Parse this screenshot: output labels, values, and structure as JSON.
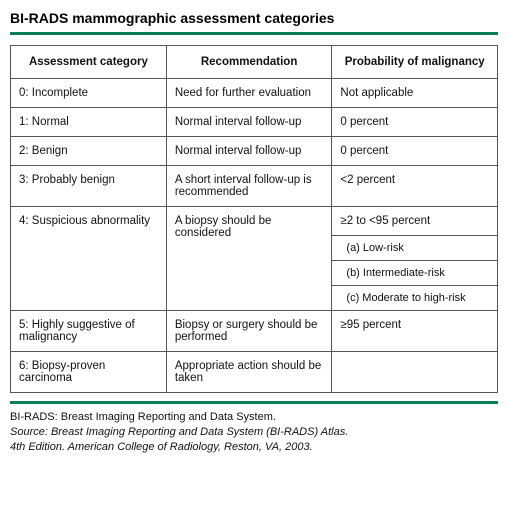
{
  "title": "BI-RADS mammographic assessment categories",
  "accent_color": "#0b7d5c",
  "border_color": "#555555",
  "columns": [
    "Assessment category",
    "Recommendation",
    "Probability of malignancy"
  ],
  "rows": [
    {
      "category": "0: Incomplete",
      "recommendation": "Need for further evaluation",
      "probability": "Not applicable"
    },
    {
      "category": "1: Normal",
      "recommendation": "Normal interval follow-up",
      "probability": "0 percent"
    },
    {
      "category": "2: Benign",
      "recommendation": "Normal interval follow-up",
      "probability": "0 percent"
    },
    {
      "category": "3: Probably benign",
      "recommendation": "A short interval follow-up is recommended",
      "probability": "<2 percent"
    },
    {
      "category": "4: Suspicious abnormality",
      "recommendation": "A biopsy should be considered",
      "probability": "≥2 to <95 percent",
      "sub": [
        "(a) Low-risk",
        "(b) Intermediate-risk",
        "(c) Moderate to high-risk"
      ]
    },
    {
      "category": "5: Highly suggestive of malignancy",
      "recommendation": "Biopsy or surgery should be performed",
      "probability": "≥95 percent"
    },
    {
      "category": "6: Biopsy-proven carcinoma",
      "recommendation": "Appropriate action should be taken",
      "probability": ""
    }
  ],
  "footer": {
    "abbr": "BI-RADS: Breast Imaging Reporting and Data System.",
    "source_line1": "Source: Breast Imaging Reporting and Data System (BI-RADS) Atlas.",
    "source_line2": "4th Edition. American College of Radiology, Reston, VA, 2003."
  }
}
